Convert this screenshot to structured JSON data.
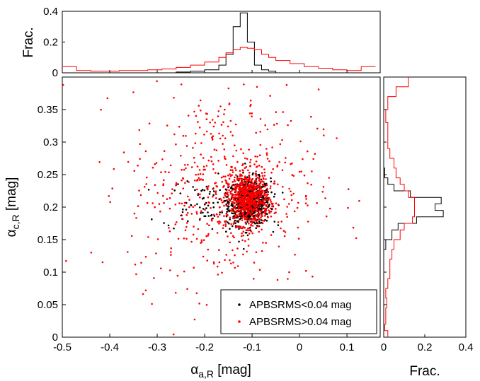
{
  "chart_data": [
    {
      "id": "scatter",
      "type": "scatter",
      "xlabel": {
        "base": "α",
        "sub": "a,R",
        "rest": " [mag]"
      },
      "ylabel": {
        "base": "α",
        "sub": "c,R",
        "rest": " [mag]"
      },
      "xlim": [
        -0.5,
        0.17
      ],
      "ylim": [
        0,
        0.4
      ],
      "xticks": [
        "-0.5",
        "-0.4",
        "-0.3",
        "-0.2",
        "-0.1",
        "0",
        "0.1"
      ],
      "xtick_values": [
        -0.5,
        -0.4,
        -0.3,
        -0.2,
        -0.1,
        0,
        0.1
      ],
      "yticks": [
        "0",
        "0.05",
        "0.1",
        "0.15",
        "0.2",
        "0.25",
        "0.3",
        "0.35"
      ],
      "ytick_values": [
        0,
        0.05,
        0.1,
        0.15,
        0.2,
        0.25,
        0.3,
        0.35
      ],
      "grid": false,
      "legend_position": "bottom-right",
      "series": [
        {
          "name": "APBSRMS<0.04 mag",
          "color": "#000000",
          "clusters": [
            {
              "count": 700,
              "center": [
                -0.105,
                0.208
              ],
              "spread": [
                0.022,
                0.018
              ]
            },
            {
              "count": 80,
              "center": [
                -0.2,
                0.205
              ],
              "spread": [
                0.045,
                0.02
              ]
            }
          ]
        },
        {
          "name": "APBSRMS>0.04 mag",
          "color": "#ff0000",
          "clusters": [
            {
              "count": 650,
              "center": [
                -0.11,
                0.212
              ],
              "spread": [
                0.022,
                0.02
              ]
            },
            {
              "count": 550,
              "center": [
                -0.16,
                0.23
              ],
              "spread": [
                0.1,
                0.075
              ]
            }
          ]
        }
      ]
    },
    {
      "id": "top-histogram",
      "type": "line",
      "ylabel": "Frac.",
      "xlim": [
        -0.5,
        0.17
      ],
      "ylim": [
        0,
        0.4
      ],
      "yticks": [
        "0",
        "0.2",
        "0.4"
      ],
      "ytick_values": [
        0,
        0.2,
        0.4
      ],
      "bin_edges": [
        -0.5,
        -0.47,
        -0.44,
        -0.41,
        -0.38,
        -0.35,
        -0.32,
        -0.29,
        -0.26,
        -0.23,
        -0.2,
        -0.17,
        -0.155,
        -0.14,
        -0.125,
        -0.11,
        -0.095,
        -0.08,
        -0.065,
        -0.05,
        -0.02,
        0.01,
        0.04,
        0.07,
        0.1,
        0.13,
        0.16
      ],
      "series": [
        {
          "name": "APBSRMS<0.04 mag",
          "color": "#000000",
          "values": [
            0,
            0,
            0,
            0,
            0,
            0,
            0,
            0,
            0.005,
            0.01,
            0.02,
            0.05,
            0.12,
            0.3,
            0.39,
            0.2,
            0.05,
            0.02,
            0.01,
            0,
            0,
            0,
            0,
            0,
            0,
            0
          ]
        },
        {
          "name": "APBSRMS>0.04 mag",
          "color": "#ff0000",
          "values": [
            0.04,
            0.015,
            0.01,
            0.01,
            0.015,
            0.015,
            0.02,
            0.025,
            0.035,
            0.05,
            0.07,
            0.1,
            0.13,
            0.15,
            0.165,
            0.16,
            0.15,
            0.12,
            0.1,
            0.08,
            0.06,
            0.04,
            0.03,
            0.02,
            0.015,
            0.04
          ]
        }
      ]
    },
    {
      "id": "right-histogram",
      "type": "line",
      "xlabel": "Frac.",
      "xlim": [
        0,
        0.4
      ],
      "ylim": [
        0,
        0.4
      ],
      "xticks": [
        "0",
        "0.2",
        "0.4"
      ],
      "xtick_values": [
        0,
        0.2,
        0.4
      ],
      "bin_edges": [
        0,
        0.01,
        0.02,
        0.03,
        0.045,
        0.06,
        0.075,
        0.09,
        0.105,
        0.12,
        0.135,
        0.15,
        0.165,
        0.175,
        0.185,
        0.195,
        0.205,
        0.215,
        0.225,
        0.235,
        0.245,
        0.26,
        0.275,
        0.29,
        0.31,
        0.33,
        0.35,
        0.37,
        0.385,
        0.4
      ],
      "series": [
        {
          "name": "APBSRMS<0.04 mag",
          "color": "#000000",
          "values": [
            0,
            0,
            0,
            0,
            0,
            0,
            0,
            0,
            0,
            0,
            0.01,
            0.04,
            0.07,
            0.16,
            0.29,
            0.25,
            0.28,
            0.13,
            0.05,
            0.02,
            0.005,
            0,
            0,
            0,
            0,
            0,
            0,
            0,
            0
          ]
        },
        {
          "name": "APBSRMS>0.04 mag",
          "color": "#ff0000",
          "values": [
            0.02,
            0.005,
            0.01,
            0.01,
            0.015,
            0.01,
            0.02,
            0.03,
            0.03,
            0.04,
            0.05,
            0.08,
            0.1,
            0.14,
            0.15,
            0.15,
            0.15,
            0.12,
            0.1,
            0.08,
            0.06,
            0.05,
            0.03,
            0.02,
            0.02,
            0.01,
            0.02,
            0.06,
            0.12
          ]
        }
      ]
    }
  ]
}
